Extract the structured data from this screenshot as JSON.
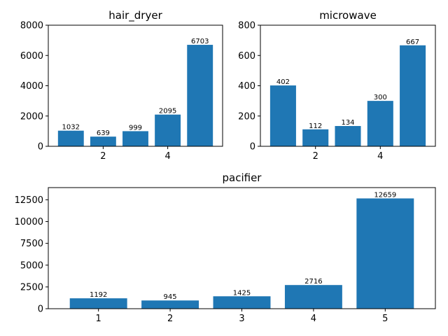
{
  "chart_data": [
    {
      "type": "bar",
      "title": "hair_dryer",
      "x": [
        1,
        2,
        3,
        4,
        5
      ],
      "values": [
        1032,
        639,
        999,
        2095,
        6703
      ],
      "data_labels": [
        "1032",
        "639",
        "999",
        "2095",
        "6703"
      ],
      "x_ticks": [
        2,
        4
      ],
      "y_ticks": [
        0,
        2000,
        4000,
        6000,
        8000
      ],
      "xlim": [
        0.3,
        5.7
      ],
      "ylim": [
        0,
        8000
      ],
      "color": "#1f77b4",
      "grid": false
    },
    {
      "type": "bar",
      "title": "microwave",
      "x": [
        1,
        2,
        3,
        4,
        5
      ],
      "values": [
        402,
        112,
        134,
        300,
        667
      ],
      "data_labels": [
        "402",
        "112",
        "134",
        "300",
        "667"
      ],
      "x_ticks": [
        2,
        4
      ],
      "y_ticks": [
        0,
        200,
        400,
        600,
        800
      ],
      "xlim": [
        0.3,
        5.7
      ],
      "ylim": [
        0,
        800
      ],
      "color": "#1f77b4",
      "grid": false
    },
    {
      "type": "bar",
      "title": "pacifier",
      "x": [
        1,
        2,
        3,
        4,
        5
      ],
      "values": [
        1192,
        945,
        1425,
        2716,
        12659
      ],
      "data_labels": [
        "1192",
        "945",
        "1425",
        "2716",
        "12659"
      ],
      "x_ticks": [
        1,
        2,
        3,
        4,
        5
      ],
      "y_ticks": [
        0,
        2500,
        5000,
        7500,
        10000,
        12500
      ],
      "xlim": [
        0.3,
        5.7
      ],
      "ylim": [
        0,
        13900
      ],
      "color": "#1f77b4",
      "grid": false
    }
  ]
}
